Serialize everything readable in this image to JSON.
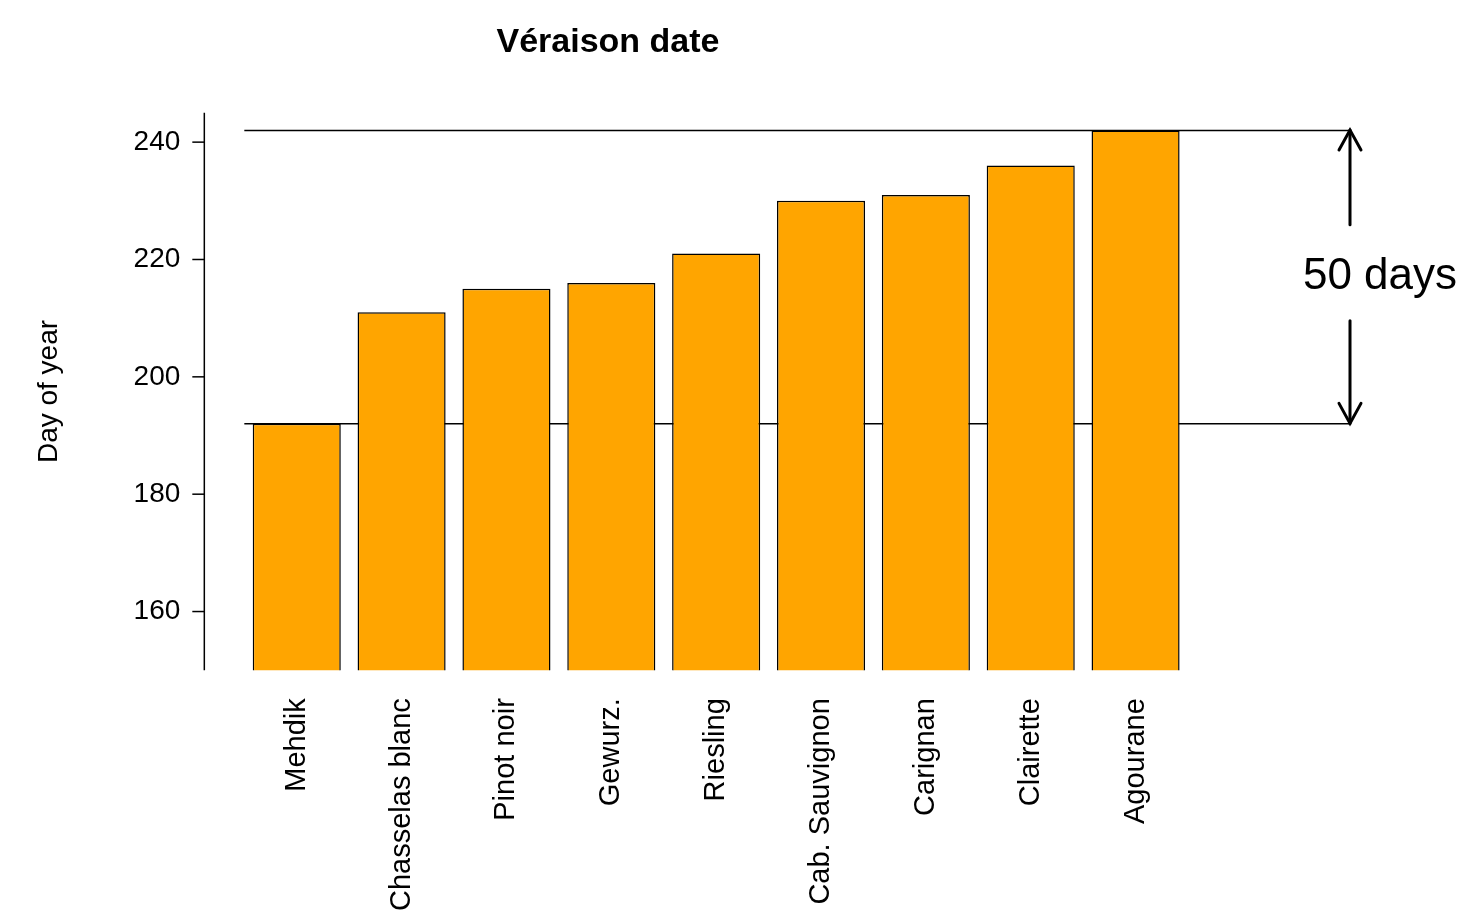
{
  "chart_data": {
    "type": "bar",
    "title": "Véraison date",
    "ylabel": "Day of year",
    "categories": [
      "Mehdik",
      "Chasselas blanc",
      "Pinot noir",
      "Gewurz.",
      "Riesling",
      "Cab. Sauvignon",
      "Carignan",
      "Clairette",
      "Agourane"
    ],
    "values": [
      192,
      211,
      215,
      216,
      221,
      230,
      231,
      236,
      242
    ],
    "color": "#ffa500",
    "ylim": [
      150,
      245
    ],
    "yticks": [
      160,
      180,
      200,
      220,
      240
    ],
    "grid": false,
    "legend": false,
    "ref_lines": [
      {
        "axis": "y",
        "value": 192,
        "label": null,
        "color": "#000000"
      },
      {
        "axis": "y",
        "value": 242,
        "label": null,
        "color": "#000000"
      }
    ],
    "annotations": [
      "50 days"
    ]
  }
}
